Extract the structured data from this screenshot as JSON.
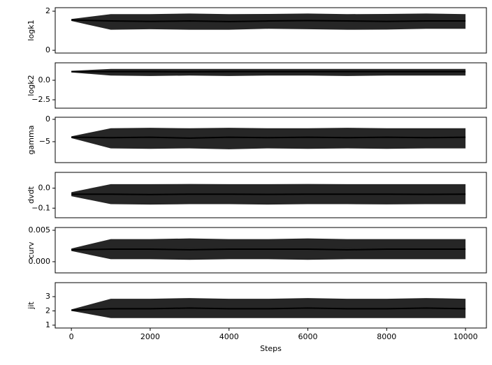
{
  "chart_data": [
    {
      "type": "band",
      "ylabel": "logk1",
      "color": "#000000",
      "x": [
        0,
        1000,
        2000,
        3000,
        4000,
        5000,
        6000,
        7000,
        8000,
        9000,
        10000
      ],
      "values": [
        1.55,
        1.5,
        1.48,
        1.5,
        1.47,
        1.5,
        1.52,
        1.5,
        1.48,
        1.5,
        1.5
      ],
      "lower": [
        1.5,
        1.05,
        1.08,
        1.05,
        1.05,
        1.1,
        1.08,
        1.05,
        1.06,
        1.1,
        1.1
      ],
      "upper": [
        1.6,
        1.85,
        1.85,
        1.88,
        1.85,
        1.86,
        1.88,
        1.85,
        1.86,
        1.88,
        1.85
      ],
      "xlim": [
        -410,
        10530
      ],
      "ylim": [
        -0.14,
        2.18
      ],
      "yticks": [
        0,
        2
      ]
    },
    {
      "type": "band",
      "ylabel": "logk2",
      "color": "#000000",
      "x": [
        0,
        1000,
        2000,
        3000,
        4000,
        5000,
        6000,
        7000,
        8000,
        9000,
        10000
      ],
      "values": [
        1.1,
        1.1,
        1.1,
        1.08,
        1.1,
        1.1,
        1.1,
        1.1,
        1.1,
        1.1,
        1.1
      ],
      "lower": [
        1.0,
        0.6,
        0.55,
        0.6,
        0.55,
        0.6,
        0.6,
        0.55,
        0.6,
        0.6,
        0.6
      ],
      "upper": [
        1.2,
        1.45,
        1.45,
        1.45,
        1.45,
        1.45,
        1.45,
        1.45,
        1.45,
        1.45,
        1.45
      ],
      "xlim": [
        -410,
        10530
      ],
      "ylim": [
        -3.57,
        2.23
      ],
      "yticks": [
        {
          "value": -2.5,
          "label": "−2.5"
        },
        {
          "value": 0,
          "label": "0.0"
        }
      ]
    },
    {
      "type": "band",
      "ylabel": "gamma",
      "color": "#000000",
      "x": [
        0,
        1000,
        2000,
        3000,
        4000,
        5000,
        6000,
        7000,
        8000,
        9000,
        10000
      ],
      "values": [
        -4,
        -4.1,
        -4,
        -4.2,
        -4,
        -4.1,
        -4,
        -4.1,
        -4,
        -4.1,
        -4
      ],
      "lower": [
        -4.2,
        -6.5,
        -6.6,
        -6.5,
        -6.7,
        -6.5,
        -6.6,
        -6.5,
        -6.6,
        -6.5,
        -6.5
      ],
      "upper": [
        -3.8,
        -2,
        -1.9,
        -2,
        -1.9,
        -2,
        -2,
        -1.9,
        -2,
        -2,
        -2
      ],
      "xlim": [
        -410,
        10530
      ],
      "ylim": [
        -9.69,
        0.47
      ],
      "yticks": [
        {
          "value": -5,
          "label": "−5"
        },
        0
      ]
    },
    {
      "type": "band",
      "ylabel": "dvdt",
      "color": "#000000",
      "x": [
        0,
        1000,
        2000,
        3000,
        4000,
        5000,
        6000,
        7000,
        8000,
        9000,
        10000
      ],
      "values": [
        -0.03,
        -0.03,
        -0.032,
        -0.03,
        -0.03,
        -0.031,
        -0.03,
        -0.03,
        -0.03,
        -0.031,
        -0.03
      ],
      "lower": [
        -0.04,
        -0.08,
        -0.082,
        -0.08,
        -0.08,
        -0.082,
        -0.08,
        -0.08,
        -0.081,
        -0.08,
        -0.08
      ],
      "upper": [
        -0.02,
        0.02,
        0.02,
        0.021,
        0.02,
        0.02,
        0.021,
        0.02,
        0.02,
        0.02,
        0.02
      ],
      "xlim": [
        -410,
        10530
      ],
      "ylim": [
        -0.148,
        0.079
      ],
      "yticks": [
        {
          "value": -0.1,
          "label": "−0.1"
        },
        {
          "value": 0,
          "label": "0.0"
        }
      ]
    },
    {
      "type": "band",
      "ylabel": "curv",
      "color": "#000000",
      "x": [
        0,
        1000,
        2000,
        3000,
        4000,
        5000,
        6000,
        7000,
        8000,
        9000,
        10000
      ],
      "values": [
        0.0019,
        0.002,
        0.002,
        0.0019,
        0.002,
        0.002,
        0.002,
        0.0019,
        0.002,
        0.002,
        0.002
      ],
      "lower": [
        0.0017,
        0.0004,
        0.0004,
        0.0003,
        0.0004,
        0.0004,
        0.0003,
        0.0004,
        0.0004,
        0.0004,
        0.0004
      ],
      "upper": [
        0.0021,
        0.0036,
        0.0036,
        0.0037,
        0.0036,
        0.0036,
        0.0037,
        0.0036,
        0.0036,
        0.0036,
        0.0036
      ],
      "xlim": [
        -410,
        10530
      ],
      "ylim": [
        -0.00178,
        0.00544
      ],
      "yticks": [
        {
          "value": 0,
          "label": "0.000"
        },
        {
          "value": 0.005,
          "label": "0.005"
        }
      ]
    },
    {
      "type": "band",
      "ylabel": "jit",
      "xlabel": "Steps",
      "color": "#000000",
      "x": [
        0,
        1000,
        2000,
        3000,
        4000,
        5000,
        6000,
        7000,
        8000,
        9000,
        10000
      ],
      "values": [
        2.05,
        2.15,
        2.15,
        2.2,
        2.15,
        2.15,
        2.2,
        2.15,
        2.15,
        2.2,
        2.15
      ],
      "lower": [
        2.0,
        1.5,
        1.5,
        1.5,
        1.5,
        1.5,
        1.5,
        1.5,
        1.5,
        1.5,
        1.5
      ],
      "upper": [
        2.1,
        2.85,
        2.85,
        2.9,
        2.85,
        2.85,
        2.9,
        2.85,
        2.85,
        2.9,
        2.85
      ],
      "xlim": [
        -410,
        10530
      ],
      "ylim": [
        0.8,
        3.98
      ],
      "yticks": [
        1,
        2,
        3
      ],
      "xticks": [
        0,
        2000,
        4000,
        6000,
        8000,
        10000
      ]
    }
  ]
}
